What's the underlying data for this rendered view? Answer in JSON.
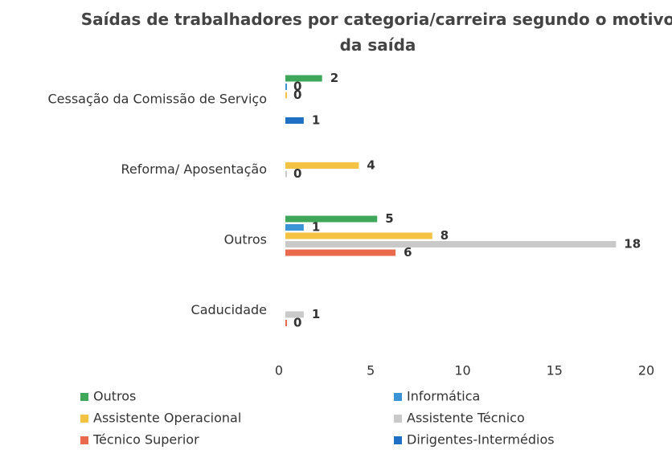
{
  "chart_data": {
    "type": "bar",
    "orientation": "horizontal",
    "title": "Saídas de trabalhadores por categoria/carreira segundo o motivo da saída",
    "categories": [
      "Cessação da Comissão de Serviço",
      "Reforma/ Aposentação",
      "Outros",
      "Caducidade"
    ],
    "series": [
      {
        "name": "Outros",
        "color": "#3fa75a",
        "values": [
          2,
          null,
          5,
          null
        ]
      },
      {
        "name": "Informática",
        "color": "#3b94d6",
        "values": [
          0,
          null,
          1,
          null
        ]
      },
      {
        "name": "Assistente Operacional",
        "color": "#f5c344",
        "values": [
          0,
          4,
          8,
          null
        ]
      },
      {
        "name": "Assistente Técnico",
        "color": "#c9c9c9",
        "values": [
          null,
          0,
          18,
          1
        ]
      },
      {
        "name": "Técnico Superior",
        "color": "#e8694b",
        "values": [
          null,
          null,
          6,
          0
        ]
      },
      {
        "name": "Dirigentes-Intermédios",
        "color": "#1f6fc4",
        "values": [
          1,
          null,
          null,
          null
        ]
      }
    ],
    "xlim": [
      0,
      20
    ],
    "xticks": [
      0,
      5,
      10,
      15,
      20
    ],
    "grid": false
  }
}
